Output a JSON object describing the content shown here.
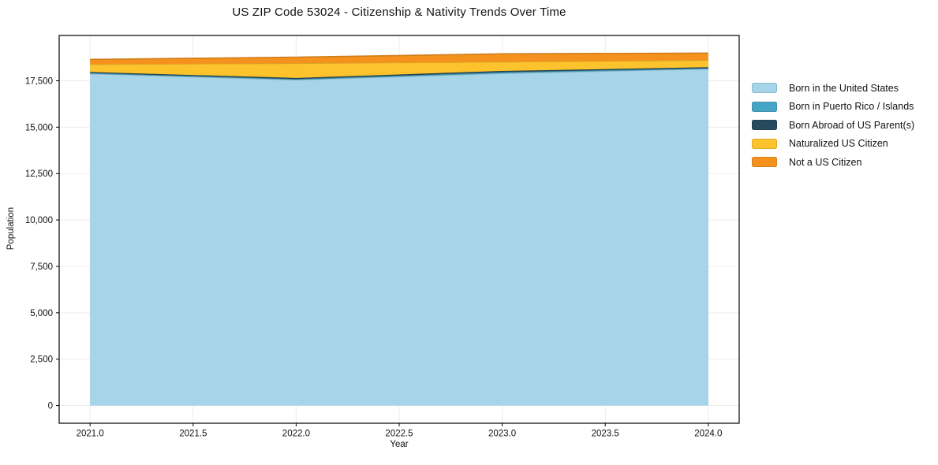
{
  "title": "US ZIP Code 53024 - Citizenship & Nativity Trends Over Time",
  "chart_data": {
    "type": "area",
    "stacked": true,
    "title": "US ZIP Code 53024 - Citizenship & Nativity Trends Over Time",
    "xlabel": "Year",
    "ylabel": "Population",
    "x": [
      2021,
      2022,
      2023,
      2024
    ],
    "series": [
      {
        "name": "Born in the United States",
        "color": "#A6D4E8",
        "values": [
          17880,
          17550,
          17900,
          18140
        ]
      },
      {
        "name": "Born in Puerto Rico / Islands",
        "color": "#46A5C4",
        "values": [
          40,
          40,
          60,
          40
        ]
      },
      {
        "name": "Born Abroad of US Parent(s)",
        "color": "#264B5D",
        "values": [
          50,
          60,
          70,
          50
        ]
      },
      {
        "name": "Naturalized US Citizen",
        "color": "#FCC32D",
        "values": [
          420,
          790,
          490,
          380
        ]
      },
      {
        "name": "Not a US Citizen",
        "color": "#F5921E",
        "values": [
          260,
          330,
          430,
          380
        ]
      }
    ],
    "totals": [
      18650,
      18770,
      18950,
      18990
    ],
    "xlim": [
      2020.85,
      2024.15
    ],
    "ylim": [
      -950,
      19940
    ],
    "xticks": [
      2021.0,
      2021.5,
      2022.0,
      2022.5,
      2023.0,
      2023.5,
      2024.0
    ],
    "xtick_labels": [
      "2021.0",
      "2021.5",
      "2022.0",
      "2022.5",
      "2023.0",
      "2023.5",
      "2024.0"
    ],
    "yticks": [
      0,
      2500,
      5000,
      7500,
      10000,
      12500,
      15000,
      17500
    ],
    "ytick_labels": [
      "0",
      "2,500",
      "5,000",
      "7,500",
      "10,000",
      "12,500",
      "15,000",
      "17,500"
    ],
    "grid": true,
    "grid_color": "#ededed",
    "legend_position": "right-outside"
  }
}
